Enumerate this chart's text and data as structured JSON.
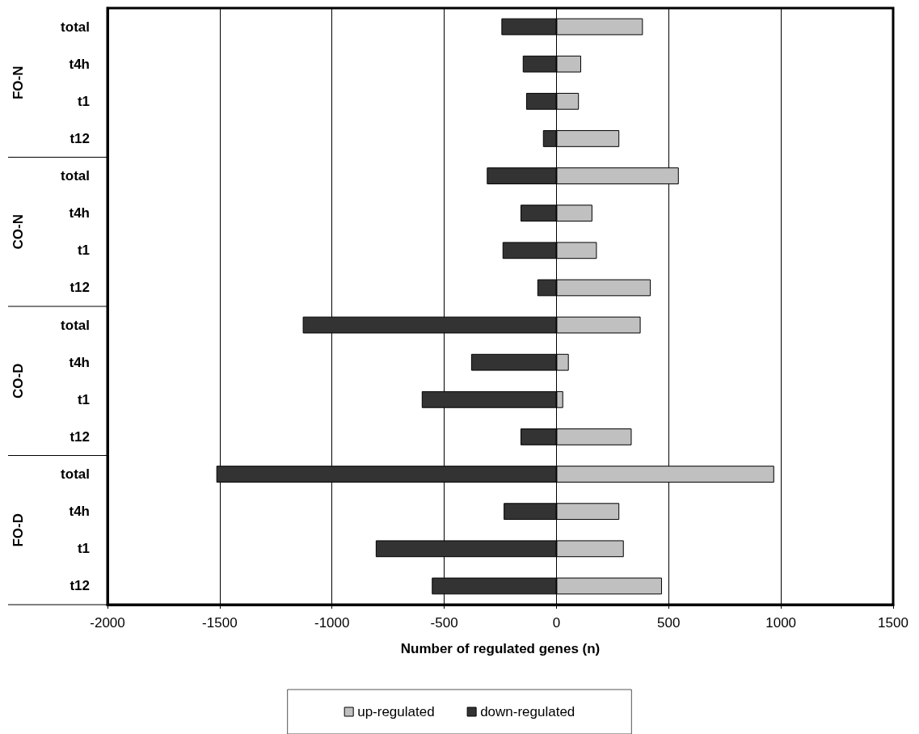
{
  "chart_data": {
    "type": "bar",
    "orientation": "horizontal",
    "stacked": true,
    "categories": [
      "total",
      "t4h",
      "t1",
      "t12",
      "total",
      "t4h",
      "t1",
      "t12",
      "total",
      "t4h",
      "t1",
      "t12",
      "total",
      "t4h",
      "t1",
      "t12"
    ],
    "series": [
      {
        "name": "up-regulated",
        "color": "#c0c0c0",
        "values": [
          385,
          110,
          100,
          280,
          545,
          160,
          180,
          420,
          375,
          55,
          30,
          335,
          970,
          280,
          300,
          470
        ]
      },
      {
        "name": "down-regulated",
        "color": "#333333",
        "values": [
          -245,
          -150,
          -135,
          -60,
          -310,
          -160,
          -240,
          -85,
          -1130,
          -380,
          -600,
          -160,
          -1515,
          -235,
          -805,
          -555
        ]
      }
    ],
    "xlabel": "Number of regulated genes (n)",
    "xlim": [
      -2000,
      1500
    ],
    "xticks": [
      -2000,
      -1500,
      -1000,
      -500,
      0,
      500,
      1000,
      1500
    ],
    "annotations": [
      "FO-N",
      "CO-N",
      "CO-D",
      "FO-D"
    ],
    "grid": "x",
    "legend": "bottom"
  }
}
